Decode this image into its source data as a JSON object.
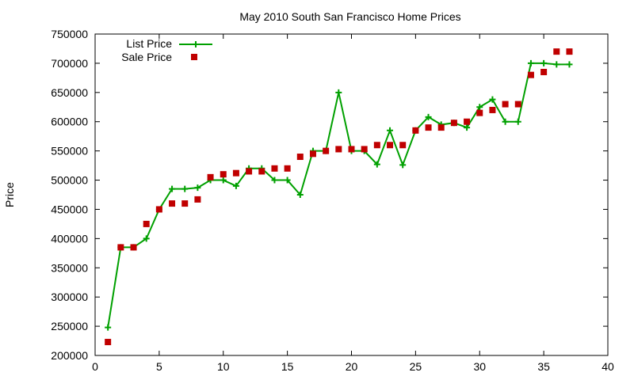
{
  "chart_data": {
    "type": "scatter",
    "title": "May 2010 South San Francisco Home Prices",
    "xlabel": "",
    "ylabel": "Price",
    "xlim": [
      0,
      40
    ],
    "ylim": [
      200000,
      750000
    ],
    "x_ticks": [
      0,
      5,
      10,
      15,
      20,
      25,
      30,
      35,
      40
    ],
    "y_ticks": [
      200000,
      250000,
      300000,
      350000,
      400000,
      450000,
      500000,
      550000,
      600000,
      650000,
      700000,
      750000
    ],
    "grid": false,
    "legend_position": "top-left",
    "series": [
      {
        "name": "List Price",
        "style": "linespoints",
        "marker": "plus",
        "color": "#00a000",
        "x": [
          1,
          2,
          3,
          4,
          5,
          6,
          7,
          8,
          9,
          10,
          11,
          12,
          13,
          14,
          15,
          16,
          17,
          18,
          19,
          20,
          21,
          22,
          23,
          24,
          25,
          26,
          27,
          28,
          29,
          30,
          31,
          32,
          33,
          34,
          35,
          36,
          37
        ],
        "y": [
          248000,
          385000,
          385000,
          400000,
          450000,
          485000,
          485000,
          487000,
          500000,
          500000,
          490000,
          520000,
          520000,
          500000,
          500000,
          475000,
          550000,
          550000,
          650000,
          550000,
          550000,
          527000,
          585000,
          526000,
          585000,
          608000,
          595000,
          598000,
          590000,
          625000,
          638000,
          600000,
          600000,
          700000,
          700000,
          698000,
          698000
        ]
      },
      {
        "name": "Sale Price",
        "style": "points",
        "marker": "square",
        "color": "#c00000",
        "x": [
          1,
          2,
          3,
          4,
          5,
          6,
          7,
          8,
          9,
          10,
          11,
          12,
          13,
          14,
          15,
          16,
          17,
          18,
          19,
          20,
          21,
          22,
          23,
          24,
          25,
          26,
          27,
          28,
          29,
          30,
          31,
          32,
          33,
          34,
          35,
          36,
          37
        ],
        "y": [
          223000,
          385000,
          385000,
          425000,
          450000,
          460000,
          460000,
          467000,
          505000,
          510000,
          512000,
          515000,
          515000,
          520000,
          520000,
          540000,
          545000,
          550000,
          553000,
          553000,
          553000,
          560000,
          560000,
          560000,
          585000,
          590000,
          590000,
          598000,
          600000,
          615000,
          620000,
          630000,
          630000,
          680000,
          685000,
          720000,
          720000
        ]
      }
    ]
  }
}
